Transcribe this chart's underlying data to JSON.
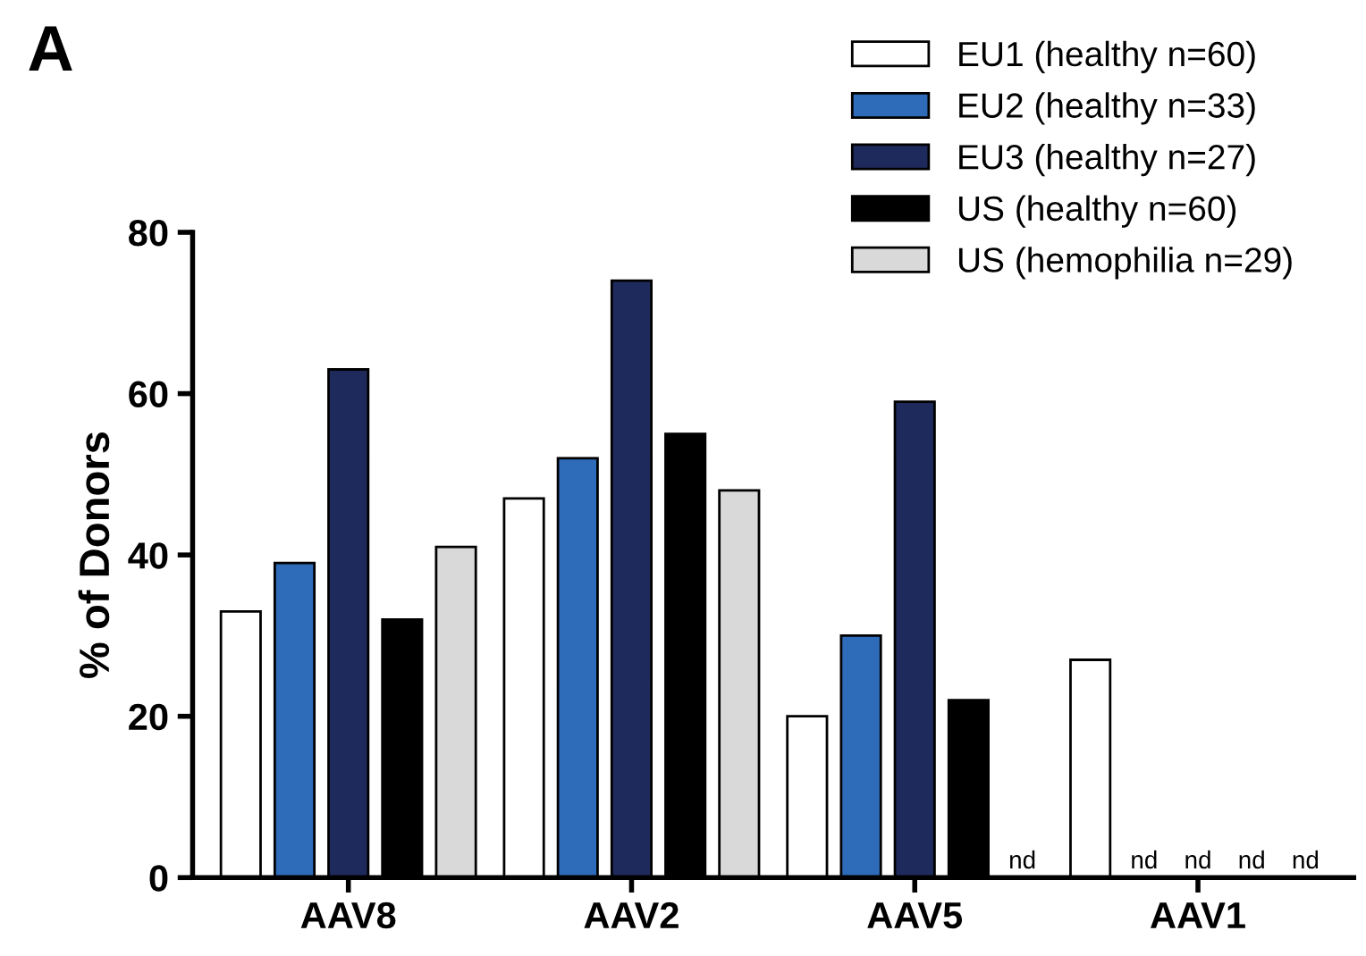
{
  "chart_data": {
    "type": "bar",
    "ylabel": "% of Donors",
    "categories": [
      "AAV8",
      "AAV2",
      "AAV5",
      "AAV1"
    ],
    "series": [
      {
        "name": "EU1 (healthy n=60)",
        "color": "#ffffff",
        "values": [
          33,
          47,
          20,
          27
        ]
      },
      {
        "name": "EU2 (healthy n=33)",
        "color": "#2e6bb8",
        "values": [
          39,
          52,
          30,
          null
        ],
        "value_labels": [
          null,
          null,
          null,
          "nd"
        ]
      },
      {
        "name": "EU3 (healthy n=27)",
        "color": "#1f2a5c",
        "values": [
          63,
          74,
          59,
          null
        ],
        "value_labels": [
          null,
          null,
          null,
          "nd"
        ]
      },
      {
        "name": "US (healthy n=60)",
        "color": "#000000",
        "values": [
          32,
          55,
          22,
          null
        ],
        "value_labels": [
          null,
          null,
          null,
          "nd"
        ]
      },
      {
        "name": "US (hemophilia n=29)",
        "color": "#d9d9d9",
        "values": [
          41,
          48,
          null,
          null
        ],
        "value_labels": [
          null,
          null,
          "nd",
          "nd"
        ]
      }
    ],
    "ylim": [
      0,
      80
    ],
    "yticks": [
      0,
      20,
      40,
      60,
      80
    ],
    "grid": false,
    "legend": "top right",
    "annotations": [
      "A"
    ]
  }
}
